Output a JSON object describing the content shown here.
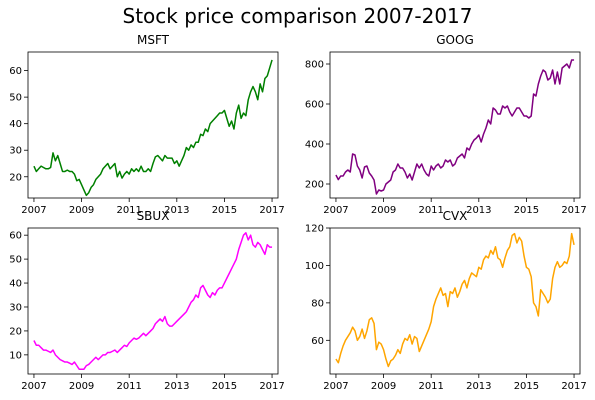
{
  "figure": {
    "title": "Stock price comparison 2007-2017"
  },
  "chart_data": [
    {
      "type": "line",
      "title": "MSFT",
      "color": "#008000",
      "xlim": [
        2006.75,
        2017.25
      ],
      "ylim": [
        12,
        67
      ],
      "xticks": [
        2007,
        2009,
        2011,
        2013,
        2015,
        2017
      ],
      "yticks": [
        20,
        30,
        40,
        50,
        60
      ],
      "x": [
        2007.0,
        2007.1,
        2007.2,
        2007.3,
        2007.4,
        2007.5,
        2007.6,
        2007.7,
        2007.8,
        2007.9,
        2008.0,
        2008.1,
        2008.2,
        2008.3,
        2008.4,
        2008.5,
        2008.6,
        2008.7,
        2008.8,
        2008.9,
        2009.0,
        2009.1,
        2009.2,
        2009.3,
        2009.4,
        2009.5,
        2009.6,
        2009.7,
        2009.8,
        2009.9,
        2010.0,
        2010.1,
        2010.2,
        2010.3,
        2010.4,
        2010.5,
        2010.6,
        2010.7,
        2010.8,
        2010.9,
        2011.0,
        2011.1,
        2011.2,
        2011.3,
        2011.4,
        2011.5,
        2011.6,
        2011.7,
        2011.8,
        2011.9,
        2012.0,
        2012.1,
        2012.2,
        2012.3,
        2012.4,
        2012.5,
        2012.6,
        2012.7,
        2012.8,
        2012.9,
        2013.0,
        2013.1,
        2013.2,
        2013.3,
        2013.4,
        2013.5,
        2013.6,
        2013.7,
        2013.8,
        2013.9,
        2014.0,
        2014.1,
        2014.2,
        2014.3,
        2014.4,
        2014.5,
        2014.6,
        2014.7,
        2014.8,
        2014.9,
        2015.0,
        2015.1,
        2015.2,
        2015.3,
        2015.4,
        2015.5,
        2015.6,
        2015.7,
        2015.8,
        2015.9,
        2016.0,
        2016.1,
        2016.2,
        2016.3,
        2016.4,
        2016.5,
        2016.6,
        2016.7,
        2016.8,
        2016.9,
        2017.0
      ],
      "y": [
        24,
        22,
        23,
        24,
        23.5,
        23,
        23,
        23.5,
        29,
        26,
        28,
        25,
        22,
        22,
        22.5,
        22,
        22,
        21,
        18.5,
        19,
        17,
        15,
        13,
        14,
        16,
        17,
        19,
        20,
        21,
        23,
        24,
        25,
        23,
        24,
        25,
        20,
        22,
        19.5,
        21,
        22,
        21,
        23,
        22,
        23,
        22,
        24,
        22,
        22,
        23,
        22,
        25,
        27.5,
        28,
        27,
        26,
        28,
        27,
        27,
        27,
        25,
        26,
        24,
        26,
        28,
        31,
        30,
        32,
        31,
        33,
        33,
        36,
        35.5,
        38,
        37,
        40,
        41,
        42,
        43,
        44,
        44,
        45,
        42,
        39,
        41,
        38,
        44,
        47,
        42,
        44,
        43,
        49,
        52,
        54,
        52,
        49,
        55,
        52,
        57,
        58,
        61,
        64
      ]
    },
    {
      "type": "line",
      "title": "GOOG",
      "color": "#800080",
      "xlim": [
        2006.75,
        2017.25
      ],
      "ylim": [
        130,
        860
      ],
      "xticks": [
        2007,
        2009,
        2011,
        2013,
        2015,
        2017
      ],
      "yticks": [
        200,
        400,
        600,
        800
      ],
      "x": [
        2007.0,
        2007.1,
        2007.2,
        2007.3,
        2007.4,
        2007.5,
        2007.6,
        2007.7,
        2007.8,
        2007.9,
        2008.0,
        2008.1,
        2008.2,
        2008.3,
        2008.4,
        2008.5,
        2008.6,
        2008.7,
        2008.8,
        2008.9,
        2009.0,
        2009.1,
        2009.2,
        2009.3,
        2009.4,
        2009.5,
        2009.6,
        2009.7,
        2009.8,
        2009.9,
        2010.0,
        2010.1,
        2010.2,
        2010.3,
        2010.4,
        2010.5,
        2010.6,
        2010.7,
        2010.8,
        2010.9,
        2011.0,
        2011.1,
        2011.2,
        2011.3,
        2011.4,
        2011.5,
        2011.6,
        2011.7,
        2011.8,
        2011.9,
        2012.0,
        2012.1,
        2012.2,
        2012.3,
        2012.4,
        2012.5,
        2012.6,
        2012.7,
        2012.8,
        2012.9,
        2013.0,
        2013.1,
        2013.2,
        2013.3,
        2013.4,
        2013.5,
        2013.6,
        2013.7,
        2013.8,
        2013.9,
        2014.0,
        2014.1,
        2014.2,
        2014.3,
        2014.4,
        2014.5,
        2014.6,
        2014.7,
        2014.8,
        2014.9,
        2015.0,
        2015.1,
        2015.2,
        2015.3,
        2015.4,
        2015.5,
        2015.6,
        2015.7,
        2015.8,
        2015.9,
        2016.0,
        2016.1,
        2016.2,
        2016.3,
        2016.4,
        2016.5,
        2016.6,
        2016.7,
        2016.8,
        2016.9,
        2017.0
      ],
      "y": [
        245,
        222,
        240,
        240,
        260,
        270,
        260,
        350,
        345,
        290,
        270,
        230,
        285,
        290,
        255,
        240,
        220,
        150,
        170,
        165,
        170,
        200,
        210,
        220,
        260,
        270,
        300,
        280,
        280,
        260,
        230,
        250,
        220,
        260,
        300,
        280,
        300,
        270,
        250,
        240,
        290,
        270,
        290,
        300,
        280,
        290,
        320,
        310,
        320,
        290,
        300,
        330,
        340,
        350,
        330,
        380,
        370,
        400,
        420,
        430,
        445,
        410,
        450,
        480,
        520,
        500,
        580,
        570,
        550,
        550,
        590,
        580,
        590,
        560,
        540,
        560,
        580,
        580,
        560,
        540,
        540,
        530,
        540,
        650,
        640,
        700,
        740,
        770,
        760,
        720,
        730,
        770,
        700,
        760,
        700,
        780,
        790,
        800,
        780,
        820,
        820
      ]
    },
    {
      "type": "line",
      "title": "SBUX",
      "color": "#ff00ff",
      "xlim": [
        2006.75,
        2017.25
      ],
      "ylim": [
        2,
        63
      ],
      "xticks": [
        2007,
        2009,
        2011,
        2013,
        2015,
        2017
      ],
      "yticks": [
        10,
        20,
        30,
        40,
        50,
        60
      ],
      "x": [
        2007.0,
        2007.1,
        2007.2,
        2007.3,
        2007.4,
        2007.5,
        2007.6,
        2007.7,
        2007.8,
        2007.9,
        2008.0,
        2008.1,
        2008.2,
        2008.3,
        2008.4,
        2008.5,
        2008.6,
        2008.7,
        2008.8,
        2008.9,
        2009.0,
        2009.1,
        2009.2,
        2009.3,
        2009.4,
        2009.5,
        2009.6,
        2009.7,
        2009.8,
        2009.9,
        2010.0,
        2010.1,
        2010.2,
        2010.3,
        2010.4,
        2010.5,
        2010.6,
        2010.7,
        2010.8,
        2010.9,
        2011.0,
        2011.1,
        2011.2,
        2011.3,
        2011.4,
        2011.5,
        2011.6,
        2011.7,
        2011.8,
        2011.9,
        2012.0,
        2012.1,
        2012.2,
        2012.3,
        2012.4,
        2012.5,
        2012.6,
        2012.7,
        2012.8,
        2012.9,
        2013.0,
        2013.1,
        2013.2,
        2013.3,
        2013.4,
        2013.5,
        2013.6,
        2013.7,
        2013.8,
        2013.9,
        2014.0,
        2014.1,
        2014.2,
        2014.3,
        2014.4,
        2014.5,
        2014.6,
        2014.7,
        2014.8,
        2014.9,
        2015.0,
        2015.1,
        2015.2,
        2015.3,
        2015.4,
        2015.5,
        2015.6,
        2015.7,
        2015.8,
        2015.9,
        2016.0,
        2016.1,
        2016.2,
        2016.3,
        2016.4,
        2016.5,
        2016.6,
        2016.7,
        2016.8,
        2016.9,
        2017.0
      ],
      "y": [
        16,
        14,
        14,
        13,
        12,
        12,
        11.5,
        11,
        12,
        10,
        9,
        8,
        7.5,
        7,
        7,
        6.5,
        6,
        7,
        5.5,
        4,
        4,
        4,
        5.5,
        6,
        7,
        8,
        9,
        8,
        9,
        10,
        10,
        11,
        11,
        11.5,
        12,
        11,
        12,
        13,
        14,
        13.5,
        15,
        16,
        17,
        16.5,
        17,
        18,
        19,
        18,
        19,
        20,
        21,
        23,
        24,
        25,
        24,
        26,
        23,
        22,
        22,
        23,
        24,
        25,
        26,
        27,
        28,
        30,
        32,
        33,
        35,
        34,
        38,
        39,
        37,
        35,
        34,
        36,
        35,
        37,
        38,
        38,
        40,
        42,
        44,
        46,
        48,
        50,
        54,
        57,
        60,
        61,
        58,
        60,
        56,
        55,
        57,
        56,
        54,
        52,
        56,
        55,
        55
      ]
    },
    {
      "type": "line",
      "title": "CVX",
      "color": "#ffa500",
      "xlim": [
        2006.75,
        2017.25
      ],
      "ylim": [
        42,
        120
      ],
      "xticks": [
        2007,
        2009,
        2011,
        2013,
        2015,
        2017
      ],
      "yticks": [
        60,
        80,
        100,
        120
      ],
      "x": [
        2007.0,
        2007.1,
        2007.2,
        2007.3,
        2007.4,
        2007.5,
        2007.6,
        2007.7,
        2007.8,
        2007.9,
        2008.0,
        2008.1,
        2008.2,
        2008.3,
        2008.4,
        2008.5,
        2008.6,
        2008.7,
        2008.8,
        2008.9,
        2009.0,
        2009.1,
        2009.2,
        2009.3,
        2009.4,
        2009.5,
        2009.6,
        2009.7,
        2009.8,
        2009.9,
        2010.0,
        2010.1,
        2010.2,
        2010.3,
        2010.4,
        2010.5,
        2010.6,
        2010.7,
        2010.8,
        2010.9,
        2011.0,
        2011.1,
        2011.2,
        2011.3,
        2011.4,
        2011.5,
        2011.6,
        2011.7,
        2011.8,
        2011.9,
        2012.0,
        2012.1,
        2012.2,
        2012.3,
        2012.4,
        2012.5,
        2012.6,
        2012.7,
        2012.8,
        2012.9,
        2013.0,
        2013.1,
        2013.2,
        2013.3,
        2013.4,
        2013.5,
        2013.6,
        2013.7,
        2013.8,
        2013.9,
        2014.0,
        2014.1,
        2014.2,
        2014.3,
        2014.4,
        2014.5,
        2014.6,
        2014.7,
        2014.8,
        2014.9,
        2015.0,
        2015.1,
        2015.2,
        2015.3,
        2015.4,
        2015.5,
        2015.6,
        2015.7,
        2015.8,
        2015.9,
        2016.0,
        2016.1,
        2016.2,
        2016.3,
        2016.4,
        2016.5,
        2016.6,
        2016.7,
        2016.8,
        2016.9,
        2017.0
      ],
      "y": [
        50,
        48,
        53,
        57,
        60,
        62,
        64,
        67,
        65,
        60,
        62,
        66,
        61,
        65,
        71,
        72,
        69,
        55,
        59,
        58,
        55,
        50,
        46,
        49,
        50,
        52,
        55,
        53,
        58,
        61,
        60,
        63,
        58,
        62,
        61,
        54,
        57,
        60,
        63,
        66,
        70,
        78,
        82,
        85,
        88,
        84,
        85,
        78,
        86,
        85,
        88,
        83,
        86,
        90,
        92,
        88,
        93,
        96,
        95,
        94,
        99,
        98,
        103,
        105,
        104,
        108,
        106,
        110,
        104,
        103,
        99,
        104,
        108,
        110,
        116,
        117,
        112,
        115,
        113,
        105,
        99,
        98,
        94,
        80,
        78,
        73,
        87,
        85,
        83,
        80,
        82,
        93,
        99,
        102,
        99,
        100,
        102,
        101,
        105,
        117,
        111
      ]
    }
  ]
}
